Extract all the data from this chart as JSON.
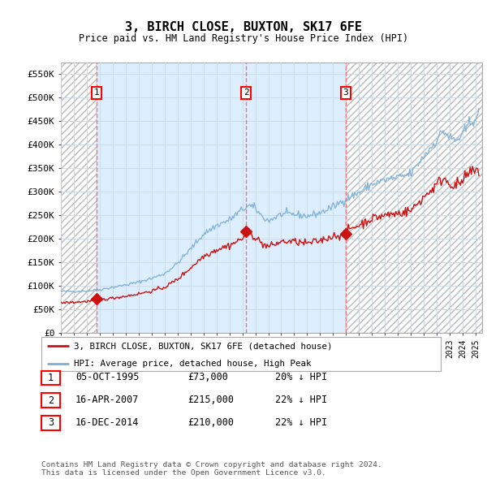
{
  "title": "3, BIRCH CLOSE, BUXTON, SK17 6FE",
  "subtitle": "Price paid vs. HM Land Registry's House Price Index (HPI)",
  "xlim_start": 1993.0,
  "xlim_end": 2025.5,
  "ylim_min": 0,
  "ylim_max": 575000,
  "yticks": [
    0,
    50000,
    100000,
    150000,
    200000,
    250000,
    300000,
    350000,
    400000,
    450000,
    500000,
    550000
  ],
  "ytick_labels": [
    "£0",
    "£50K",
    "£100K",
    "£150K",
    "£200K",
    "£250K",
    "£300K",
    "£350K",
    "£400K",
    "£450K",
    "£500K",
    "£550K"
  ],
  "hpi_color": "#7bafd4",
  "price_color": "#cc1111",
  "grid_color": "#c8d8e8",
  "bg_color": "#ddeeff",
  "hatch_color": "#bbbbbb",
  "sale_dates": [
    1995.76,
    2007.29,
    2014.96
  ],
  "sale_prices": [
    73000,
    215000,
    210000
  ],
  "sale_labels": [
    "1",
    "2",
    "3"
  ],
  "legend_price_label": "3, BIRCH CLOSE, BUXTON, SK17 6FE (detached house)",
  "legend_hpi_label": "HPI: Average price, detached house, High Peak",
  "table_entries": [
    {
      "num": "1",
      "date": "05-OCT-1995",
      "price": "£73,000",
      "hpi": "20% ↓ HPI"
    },
    {
      "num": "2",
      "date": "16-APR-2007",
      "price": "£215,000",
      "hpi": "22% ↓ HPI"
    },
    {
      "num": "3",
      "date": "16-DEC-2014",
      "price": "£210,000",
      "hpi": "22% ↓ HPI"
    }
  ],
  "footer": "Contains HM Land Registry data © Crown copyright and database right 2024.\nThis data is licensed under the Open Government Licence v3.0."
}
